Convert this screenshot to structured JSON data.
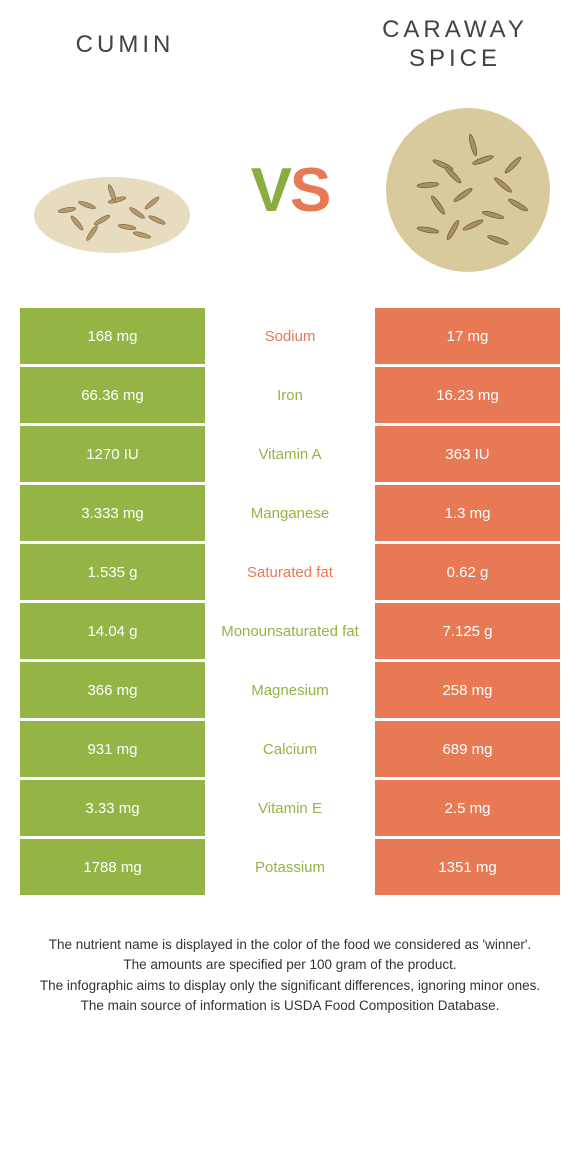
{
  "colors": {
    "green": "#94b445",
    "orange": "#e77a54",
    "text": "#333333",
    "title": "#424242",
    "white": "#ffffff",
    "seed_light": "#c9b48a",
    "seed_dark": "#8a7248",
    "seed_bg": "#f5efe2"
  },
  "header": {
    "left": "CUMIN",
    "right_line1": "CARAWAY",
    "right_line2": "SPICE"
  },
  "vs": {
    "v": "V",
    "s": "S"
  },
  "rows": [
    {
      "left": "168 mg",
      "mid": "Sodium",
      "right": "17 mg",
      "winner": "orange"
    },
    {
      "left": "66.36 mg",
      "mid": "Iron",
      "right": "16.23 mg",
      "winner": "green"
    },
    {
      "left": "1270 IU",
      "mid": "Vitamin A",
      "right": "363 IU",
      "winner": "green"
    },
    {
      "left": "3.333 mg",
      "mid": "Manganese",
      "right": "1.3 mg",
      "winner": "green"
    },
    {
      "left": "1.535 g",
      "mid": "Saturated fat",
      "right": "0.62 g",
      "winner": "orange"
    },
    {
      "left": "14.04 g",
      "mid": "Monounsaturated fat",
      "right": "7.125 g",
      "winner": "green"
    },
    {
      "left": "366 mg",
      "mid": "Magnesium",
      "right": "258 mg",
      "winner": "green"
    },
    {
      "left": "931 mg",
      "mid": "Calcium",
      "right": "689 mg",
      "winner": "green"
    },
    {
      "left": "3.33 mg",
      "mid": "Vitamin E",
      "right": "2.5 mg",
      "winner": "green"
    },
    {
      "left": "1788 mg",
      "mid": "Potassium",
      "right": "1351 mg",
      "winner": "green"
    }
  ],
  "footer": {
    "l1": "The nutrient name is displayed in the color of the food we considered as 'winner'.",
    "l2": "The amounts are specified per 100 gram of the product.",
    "l3": "The infographic aims to display only the significant differences, ignoring minor ones.",
    "l4": "The main source of information is USDA Food Composition Database."
  }
}
